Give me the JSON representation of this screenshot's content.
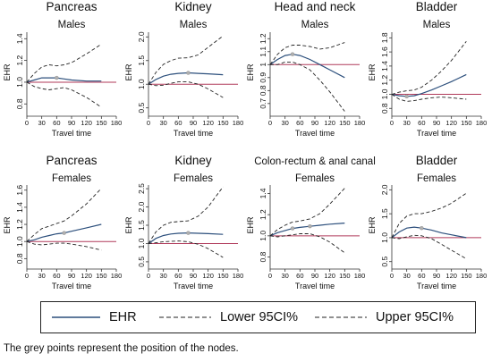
{
  "legend": {
    "ehr": "EHR",
    "lower": "Lower 95CI%",
    "upper": "Upper 95CI%"
  },
  "caption": "The grey points represent the position of the nodes.",
  "colors": {
    "ehr": "#2c4f7c",
    "reference": "#b03a5a",
    "ci": "#222222",
    "nodes": "#b0b0b0"
  },
  "chart_data": [
    {
      "type": "line",
      "title": "Pancreas",
      "subtitle": "Males",
      "ylabel": "EHR",
      "xlabel": "Travel time",
      "xticks": [
        0,
        30,
        60,
        90,
        120,
        150,
        180
      ],
      "xlim": [
        0,
        180
      ],
      "yticks": [
        0.8,
        1.0,
        1.2,
        1.4
      ],
      "ytick_labels": [
        "0.8",
        "1.0",
        "1.2",
        "1.4"
      ],
      "ylim": [
        0.72,
        1.46
      ],
      "reference": 1.0,
      "nodes": [
        60
      ],
      "series": [
        {
          "x": [
            0,
            15,
            30,
            45,
            60,
            75,
            90,
            120,
            150
          ],
          "values": [
            1.0,
            1.02,
            1.04,
            1.04,
            1.04,
            1.03,
            1.02,
            1.01,
            1.01
          ]
        },
        {
          "x": [
            0,
            15,
            30,
            45,
            60,
            75,
            90,
            120,
            150
          ],
          "values": [
            1.0,
            0.96,
            0.94,
            0.93,
            0.94,
            0.95,
            0.93,
            0.86,
            0.77
          ]
        },
        {
          "x": [
            0,
            15,
            30,
            45,
            60,
            75,
            90,
            120,
            150
          ],
          "values": [
            1.0,
            1.08,
            1.14,
            1.16,
            1.15,
            1.16,
            1.18,
            1.26,
            1.35
          ]
        }
      ]
    },
    {
      "type": "line",
      "title": "Kidney",
      "subtitle": "Males",
      "ylabel": "EHR",
      "xlabel": "Travel time",
      "xticks": [
        0,
        30,
        60,
        90,
        120,
        150,
        180
      ],
      "xlim": [
        0,
        180
      ],
      "yticks": [
        0.5,
        1.0,
        1.5,
        2.0
      ],
      "ytick_labels": [
        "0.5",
        "1.0",
        "1.5",
        "2.0"
      ],
      "ylim": [
        0.4,
        2.1
      ],
      "reference": 1.0,
      "nodes": [
        80
      ],
      "series": [
        {
          "x": [
            0,
            15,
            30,
            45,
            60,
            80,
            100,
            120,
            150
          ],
          "values": [
            1.0,
            1.1,
            1.17,
            1.21,
            1.23,
            1.24,
            1.23,
            1.22,
            1.2
          ]
        },
        {
          "x": [
            0,
            15,
            30,
            45,
            60,
            80,
            100,
            120,
            150
          ],
          "values": [
            1.0,
            0.97,
            0.98,
            1.02,
            1.05,
            1.05,
            1.0,
            0.9,
            0.72
          ]
        },
        {
          "x": [
            0,
            15,
            30,
            45,
            60,
            80,
            100,
            120,
            150
          ],
          "values": [
            1.0,
            1.25,
            1.42,
            1.5,
            1.55,
            1.56,
            1.62,
            1.78,
            2.02
          ]
        }
      ]
    },
    {
      "type": "line",
      "title": "Head and neck",
      "subtitle": "Males",
      "ylabel": "EHR",
      "xlabel": "Travel time",
      "xticks": [
        0,
        30,
        60,
        90,
        120,
        150,
        180
      ],
      "xlim": [
        0,
        180
      ],
      "yticks": [
        0.7,
        0.8,
        0.9,
        1.0,
        1.1,
        1.2
      ],
      "ytick_labels": [
        "0.7",
        "0.8",
        "0.9",
        "1",
        "1.1",
        "1.2"
      ],
      "ylim": [
        0.63,
        1.25
      ],
      "reference": 1.0,
      "nodes": [
        45
      ],
      "series": [
        {
          "x": [
            0,
            15,
            30,
            45,
            60,
            80,
            100,
            120,
            150
          ],
          "values": [
            1.0,
            1.04,
            1.07,
            1.08,
            1.07,
            1.04,
            1.0,
            0.96,
            0.9
          ]
        },
        {
          "x": [
            0,
            15,
            30,
            45,
            60,
            80,
            100,
            120,
            150
          ],
          "values": [
            1.0,
            1.0,
            1.02,
            1.02,
            1.0,
            0.96,
            0.88,
            0.79,
            0.64
          ]
        },
        {
          "x": [
            0,
            15,
            30,
            45,
            60,
            80,
            100,
            120,
            150
          ],
          "values": [
            1.0,
            1.08,
            1.13,
            1.15,
            1.15,
            1.14,
            1.12,
            1.13,
            1.17
          ]
        }
      ]
    },
    {
      "type": "line",
      "title": "Bladder",
      "subtitle": "Males",
      "ylabel": "EHR",
      "xlabel": "Travel time",
      "xticks": [
        0,
        30,
        60,
        90,
        120,
        150,
        180
      ],
      "xlim": [
        0,
        180
      ],
      "yticks": [
        0.8,
        1.0,
        1.2,
        1.4,
        1.6,
        1.8
      ],
      "ytick_labels": [
        "0.8",
        "1.0",
        "1.2",
        "1.4",
        "1.6",
        "1.8"
      ],
      "ylim": [
        0.74,
        1.88
      ],
      "reference": 1.0,
      "nodes": [
        30
      ],
      "series": [
        {
          "x": [
            0,
            15,
            30,
            45,
            60,
            80,
            100,
            120,
            150
          ],
          "values": [
            1.0,
            0.98,
            0.97,
            0.98,
            1.01,
            1.06,
            1.12,
            1.18,
            1.28
          ]
        },
        {
          "x": [
            0,
            15,
            30,
            45,
            60,
            80,
            100,
            120,
            150
          ],
          "values": [
            1.0,
            0.93,
            0.9,
            0.91,
            0.93,
            0.95,
            0.96,
            0.95,
            0.93
          ]
        },
        {
          "x": [
            0,
            15,
            30,
            45,
            60,
            80,
            100,
            120,
            150
          ],
          "values": [
            1.0,
            1.03,
            1.05,
            1.06,
            1.1,
            1.2,
            1.33,
            1.48,
            1.75
          ]
        }
      ]
    },
    {
      "type": "line",
      "title": "Pancreas",
      "subtitle": "Females",
      "ylabel": "EHR",
      "xlabel": "Travel time",
      "xticks": [
        0,
        30,
        60,
        90,
        120,
        150,
        180
      ],
      "xlim": [
        0,
        180
      ],
      "yticks": [
        0.8,
        1.0,
        1.2,
        1.4,
        1.6
      ],
      "ytick_labels": [
        "0.8",
        "1.0",
        "1.2",
        "1.4",
        "1.6"
      ],
      "ylim": [
        0.72,
        1.66
      ],
      "reference": 1.0,
      "nodes": [
        75
      ],
      "series": [
        {
          "x": [
            0,
            15,
            30,
            45,
            60,
            75,
            90,
            120,
            150
          ],
          "values": [
            1.0,
            1.02,
            1.05,
            1.07,
            1.09,
            1.1,
            1.12,
            1.16,
            1.2
          ]
        },
        {
          "x": [
            0,
            15,
            30,
            45,
            60,
            75,
            90,
            120,
            150
          ],
          "values": [
            1.0,
            0.97,
            0.96,
            0.97,
            0.98,
            0.98,
            0.97,
            0.94,
            0.9
          ]
        },
        {
          "x": [
            0,
            15,
            30,
            45,
            60,
            75,
            90,
            120,
            150
          ],
          "values": [
            1.0,
            1.08,
            1.15,
            1.18,
            1.21,
            1.24,
            1.3,
            1.44,
            1.62
          ]
        }
      ]
    },
    {
      "type": "line",
      "title": "Kidney",
      "subtitle": "Females",
      "ylabel": "EHR",
      "xlabel": "Travel time",
      "xticks": [
        0,
        30,
        60,
        90,
        120,
        150,
        180
      ],
      "xlim": [
        0,
        180
      ],
      "yticks": [
        0.5,
        1.0,
        1.5,
        2.0,
        2.5
      ],
      "ytick_labels": [
        "0.5",
        "1.0",
        "1.5",
        "2.0",
        "2.5"
      ],
      "ylim": [
        0.4,
        2.6
      ],
      "reference": 1.0,
      "nodes": [
        80
      ],
      "series": [
        {
          "x": [
            0,
            15,
            30,
            45,
            60,
            80,
            100,
            120,
            150
          ],
          "values": [
            1.0,
            1.14,
            1.22,
            1.26,
            1.28,
            1.29,
            1.28,
            1.27,
            1.25
          ]
        },
        {
          "x": [
            0,
            15,
            30,
            45,
            60,
            80,
            100,
            120,
            150
          ],
          "values": [
            1.0,
            1.02,
            1.05,
            1.06,
            1.07,
            1.05,
            0.98,
            0.86,
            0.62
          ]
        },
        {
          "x": [
            0,
            15,
            30,
            45,
            60,
            80,
            100,
            120,
            150
          ],
          "values": [
            1.0,
            1.32,
            1.5,
            1.58,
            1.6,
            1.62,
            1.75,
            2.0,
            2.55
          ]
        }
      ]
    },
    {
      "type": "line",
      "title": "Colon-rectum & anal canal",
      "subtitle": "Females",
      "ylabel": "EHR",
      "xlabel": "Travel time",
      "xticks": [
        0,
        30,
        60,
        90,
        120,
        150,
        180
      ],
      "xlim": [
        0,
        180
      ],
      "yticks": [
        0.8,
        1.0,
        1.2,
        1.4
      ],
      "ytick_labels": [
        "0.8",
        "1.0",
        "1.2",
        "1.4"
      ],
      "ylim": [
        0.72,
        1.48
      ],
      "reference": 1.0,
      "nodes": [
        45,
        80
      ],
      "series": [
        {
          "x": [
            0,
            15,
            30,
            45,
            60,
            80,
            100,
            120,
            150
          ],
          "values": [
            1.0,
            1.03,
            1.05,
            1.07,
            1.08,
            1.09,
            1.1,
            1.11,
            1.12
          ]
        },
        {
          "x": [
            0,
            15,
            30,
            45,
            60,
            80,
            100,
            120,
            150
          ],
          "values": [
            1.0,
            0.99,
            1.0,
            1.01,
            1.02,
            1.02,
            0.99,
            0.94,
            0.84
          ]
        },
        {
          "x": [
            0,
            15,
            30,
            45,
            60,
            80,
            100,
            120,
            150
          ],
          "values": [
            1.0,
            1.06,
            1.1,
            1.13,
            1.14,
            1.16,
            1.21,
            1.3,
            1.45
          ]
        }
      ]
    },
    {
      "type": "line",
      "title": "Bladder",
      "subtitle": "Females",
      "ylabel": "EHR",
      "xlabel": "Travel time",
      "xticks": [
        0,
        30,
        60,
        90,
        120,
        150,
        180
      ],
      "xlim": [
        0,
        180
      ],
      "yticks": [
        0.5,
        1.0,
        1.5,
        2.0
      ],
      "ytick_labels": [
        "0.5",
        "1.0",
        "1.5",
        "2.0"
      ],
      "ylim": [
        0.42,
        2.1
      ],
      "reference": 1.0,
      "nodes": [
        60
      ],
      "series": [
        {
          "x": [
            0,
            15,
            30,
            45,
            60,
            80,
            100,
            120,
            150
          ],
          "values": [
            1.0,
            1.12,
            1.2,
            1.22,
            1.2,
            1.16,
            1.1,
            1.06,
            1.0
          ]
        },
        {
          "x": [
            0,
            15,
            30,
            45,
            60,
            80,
            100,
            120,
            150
          ],
          "values": [
            1.0,
            0.98,
            1.02,
            1.05,
            1.04,
            0.98,
            0.86,
            0.74,
            0.56
          ]
        },
        {
          "x": [
            0,
            15,
            30,
            45,
            60,
            80,
            100,
            120,
            150
          ],
          "values": [
            1.0,
            1.3,
            1.45,
            1.5,
            1.5,
            1.55,
            1.62,
            1.72,
            1.93
          ]
        }
      ]
    }
  ]
}
